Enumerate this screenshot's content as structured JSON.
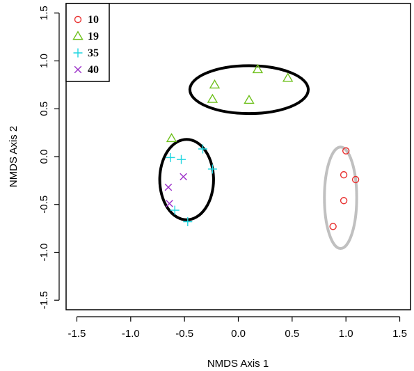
{
  "chart_data": {
    "type": "scatter",
    "title": "",
    "xlabel": "NMDS Axis 1",
    "ylabel": "NMDS Axis 2",
    "xlim": [
      -1.6,
      1.6
    ],
    "ylim": [
      -1.6,
      1.6
    ],
    "x_ticks": [
      "-1.5",
      "-1.0",
      "-0.5",
      "0.0",
      "0.5",
      "1.0",
      "1.5"
    ],
    "y_ticks": [
      "-1.5",
      "-1.0",
      "-0.5",
      "0.0",
      "0.5",
      "1.0",
      "1.5"
    ],
    "grid": false,
    "legend_position": "top-left",
    "series": [
      {
        "name": "10",
        "marker": "circle",
        "color": "#e8302f",
        "points": [
          [
            1.0,
            0.06
          ],
          [
            0.98,
            -0.19
          ],
          [
            1.09,
            -0.24
          ],
          [
            0.98,
            -0.46
          ],
          [
            0.88,
            -0.73
          ]
        ]
      },
      {
        "name": "19",
        "marker": "triangle",
        "color": "#6ec01b",
        "points": [
          [
            0.18,
            0.91
          ],
          [
            0.46,
            0.82
          ],
          [
            -0.22,
            0.75
          ],
          [
            -0.24,
            0.6
          ],
          [
            0.1,
            0.59
          ],
          [
            -0.62,
            0.19
          ]
        ]
      },
      {
        "name": "35",
        "marker": "plus",
        "color": "#1fd6e0",
        "points": [
          [
            -0.33,
            0.08
          ],
          [
            -0.63,
            -0.01
          ],
          [
            -0.53,
            -0.03
          ],
          [
            -0.24,
            -0.13
          ],
          [
            -0.59,
            -0.56
          ],
          [
            -0.47,
            -0.68
          ]
        ]
      },
      {
        "name": "40",
        "marker": "cross",
        "color": "#9b2fc8",
        "points": [
          [
            -0.65,
            -0.32
          ],
          [
            -0.51,
            -0.21
          ],
          [
            -0.64,
            -0.49
          ]
        ]
      }
    ],
    "ellipses": [
      {
        "cx": 0.1,
        "cy": 0.7,
        "rx": 0.55,
        "ry": 0.25,
        "color": "#000000"
      },
      {
        "cx": -0.48,
        "cy": -0.24,
        "rx": 0.25,
        "ry": 0.42,
        "color": "#000000"
      },
      {
        "cx": 0.95,
        "cy": -0.43,
        "rx": 0.15,
        "ry": 0.53,
        "color": "#c0c0c0"
      }
    ]
  }
}
